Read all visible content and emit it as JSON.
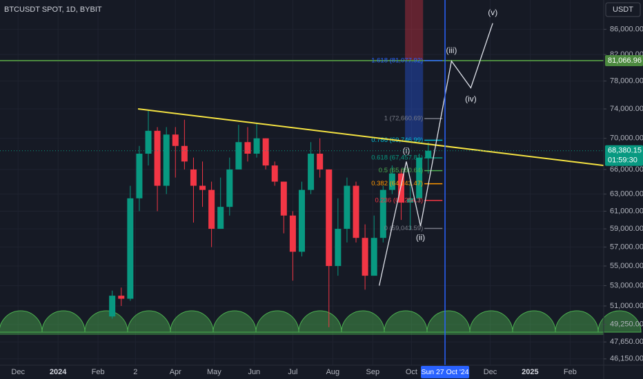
{
  "chart_data": {
    "type": "candlestick",
    "title": "BTCUSDT SPOT, 1D, BYBIT",
    "currency": "USDT",
    "up_color": "#089981",
    "down_color": "#f23645",
    "log_scale": true,
    "grid": true,
    "x": [
      73,
      80,
      87,
      94,
      101,
      108,
      115,
      122,
      129,
      136,
      143,
      150,
      157,
      164,
      171,
      178,
      185,
      192,
      199,
      206,
      213,
      220,
      227,
      234,
      241,
      248,
      255,
      262,
      269,
      276,
      283,
      290,
      297,
      304,
      311,
      318
    ],
    "open": [
      50000,
      52000,
      51700,
      62500,
      68000,
      71000,
      64000,
      70500,
      69000,
      66000,
      64000,
      63500,
      59000,
      61500,
      66000,
      69500,
      68000,
      70000,
      66500,
      64500,
      60500,
      56500,
      63500,
      68000,
      66000,
      55000,
      59000,
      64000,
      58000,
      54000,
      58000,
      63500,
      65500,
      62000,
      62500,
      67500
    ],
    "high": [
      52500,
      52800,
      64000,
      69000,
      73800,
      71500,
      71500,
      71500,
      72500,
      67500,
      67000,
      64500,
      65000,
      67500,
      71800,
      71500,
      72000,
      70000,
      67000,
      64500,
      61000,
      64500,
      69500,
      70000,
      66000,
      62500,
      65000,
      64500,
      59500,
      60500,
      64000,
      66500,
      66000,
      64500,
      68000,
      69500
    ],
    "low": [
      49800,
      51000,
      51500,
      61000,
      66500,
      61000,
      63000,
      65000,
      66000,
      59700,
      61500,
      57000,
      59000,
      60500,
      66000,
      67000,
      67500,
      66000,
      64000,
      58500,
      53500,
      56000,
      63000,
      65000,
      49000,
      54000,
      57500,
      57500,
      52600,
      54000,
      57500,
      63000,
      60000,
      58900,
      62000,
      65500
    ],
    "close": [
      52000,
      51700,
      62500,
      68000,
      71000,
      64000,
      70500,
      69000,
      67000,
      64000,
      63500,
      59000,
      61500,
      66000,
      69500,
      68000,
      70000,
      66500,
      64500,
      60500,
      56500,
      63500,
      68000,
      66000,
      55000,
      59000,
      64000,
      58000,
      54000,
      58000,
      63500,
      65500,
      62000,
      62500,
      67500,
      68380.15
    ],
    "xlim": [
      -14,
      454
    ],
    "xticks": [
      {
        "value": 0,
        "label": "Dec"
      },
      {
        "value": 31,
        "label": "2024"
      },
      {
        "value": 62,
        "label": "Feb"
      },
      {
        "value": 91,
        "label": "2"
      },
      {
        "value": 122,
        "label": "Apr"
      },
      {
        "value": 152,
        "label": "May"
      },
      {
        "value": 183,
        "label": "Jun"
      },
      {
        "value": 213,
        "label": "Jul"
      },
      {
        "value": 244,
        "label": "Aug"
      },
      {
        "value": 275,
        "label": "Sep"
      },
      {
        "value": 305,
        "label": "Oct"
      },
      {
        "value": 366,
        "label": "Dec"
      },
      {
        "value": 397,
        "label": "2025"
      },
      {
        "value": 428,
        "label": "Feb"
      }
    ],
    "ylim": [
      45600,
      90900
    ],
    "yticks": [
      {
        "value": 86000,
        "label": "86,000.00"
      },
      {
        "value": 82000,
        "label": "82,000.00"
      },
      {
        "value": 78000,
        "label": "78,000.00"
      },
      {
        "value": 74000,
        "label": "74,000.00"
      },
      {
        "value": 70000,
        "label": "70,000.00"
      },
      {
        "value": 66000,
        "label": "66,000.00"
      },
      {
        "value": 63000,
        "label": "63,000.00"
      },
      {
        "value": 61000,
        "label": "61,000.00"
      },
      {
        "value": 59000,
        "label": "59,000.00"
      },
      {
        "value": 57000,
        "label": "57,000.00"
      },
      {
        "value": 55000,
        "label": "55,000.00"
      },
      {
        "value": 53000,
        "label": "53,000.00"
      },
      {
        "value": 51000,
        "label": "51,000.00"
      },
      {
        "value": 49250,
        "label": "49,250.00"
      },
      {
        "value": 47650,
        "label": "47,650.00"
      },
      {
        "value": 46150,
        "label": "46,150.00"
      }
    ],
    "last_price": {
      "value": 68380.15,
      "label": "68,380.15"
    },
    "countdown": "01:59:30",
    "horizontal_level": {
      "value": 81066.96,
      "label": "81,066.96",
      "color": "#4c8a3f"
    },
    "date_marker": {
      "value": 331,
      "label": "Sun 27 Oct '24",
      "color": "#2962ff"
    },
    "trendline": {
      "x": [
        93,
        454
      ],
      "y": [
        74000,
        66500
      ],
      "color": "#f5e342"
    },
    "fib_levels": [
      {
        "value": 81077.92,
        "label": "1.618 (81,077.92)",
        "color": "#2962ff"
      },
      {
        "value": 72660.69,
        "label": "1 (72,660.69)",
        "color": "#787b86"
      },
      {
        "value": 69746.99,
        "label": "0.786 (69,746.99)",
        "color": "#00bcd4"
      },
      {
        "value": 67457.81,
        "label": "0.618 (67,457.81)",
        "color": "#089981"
      },
      {
        "value": 65850.64,
        "label": "0.5 (65,850.64)",
        "color": "#4caf50"
      },
      {
        "value": 64243.47,
        "label": "0.382 (64,243.47)",
        "color": "#ff9800"
      },
      {
        "value": 62254.3,
        "label": "0.236 (62,254.3)",
        "color": "#f23645"
      },
      {
        "value": 59043.59,
        "label": "0 (59,043.59)",
        "color": "#787b86"
      }
    ],
    "waves": {
      "x": [
        280,
        301,
        312,
        336,
        351,
        368
      ],
      "y": [
        53000,
        67000,
        59300,
        81000,
        77000,
        87000
      ],
      "labels": [
        null,
        "(i)",
        "(ii)",
        "(iii)",
        "(iv)",
        "(v)"
      ]
    }
  }
}
